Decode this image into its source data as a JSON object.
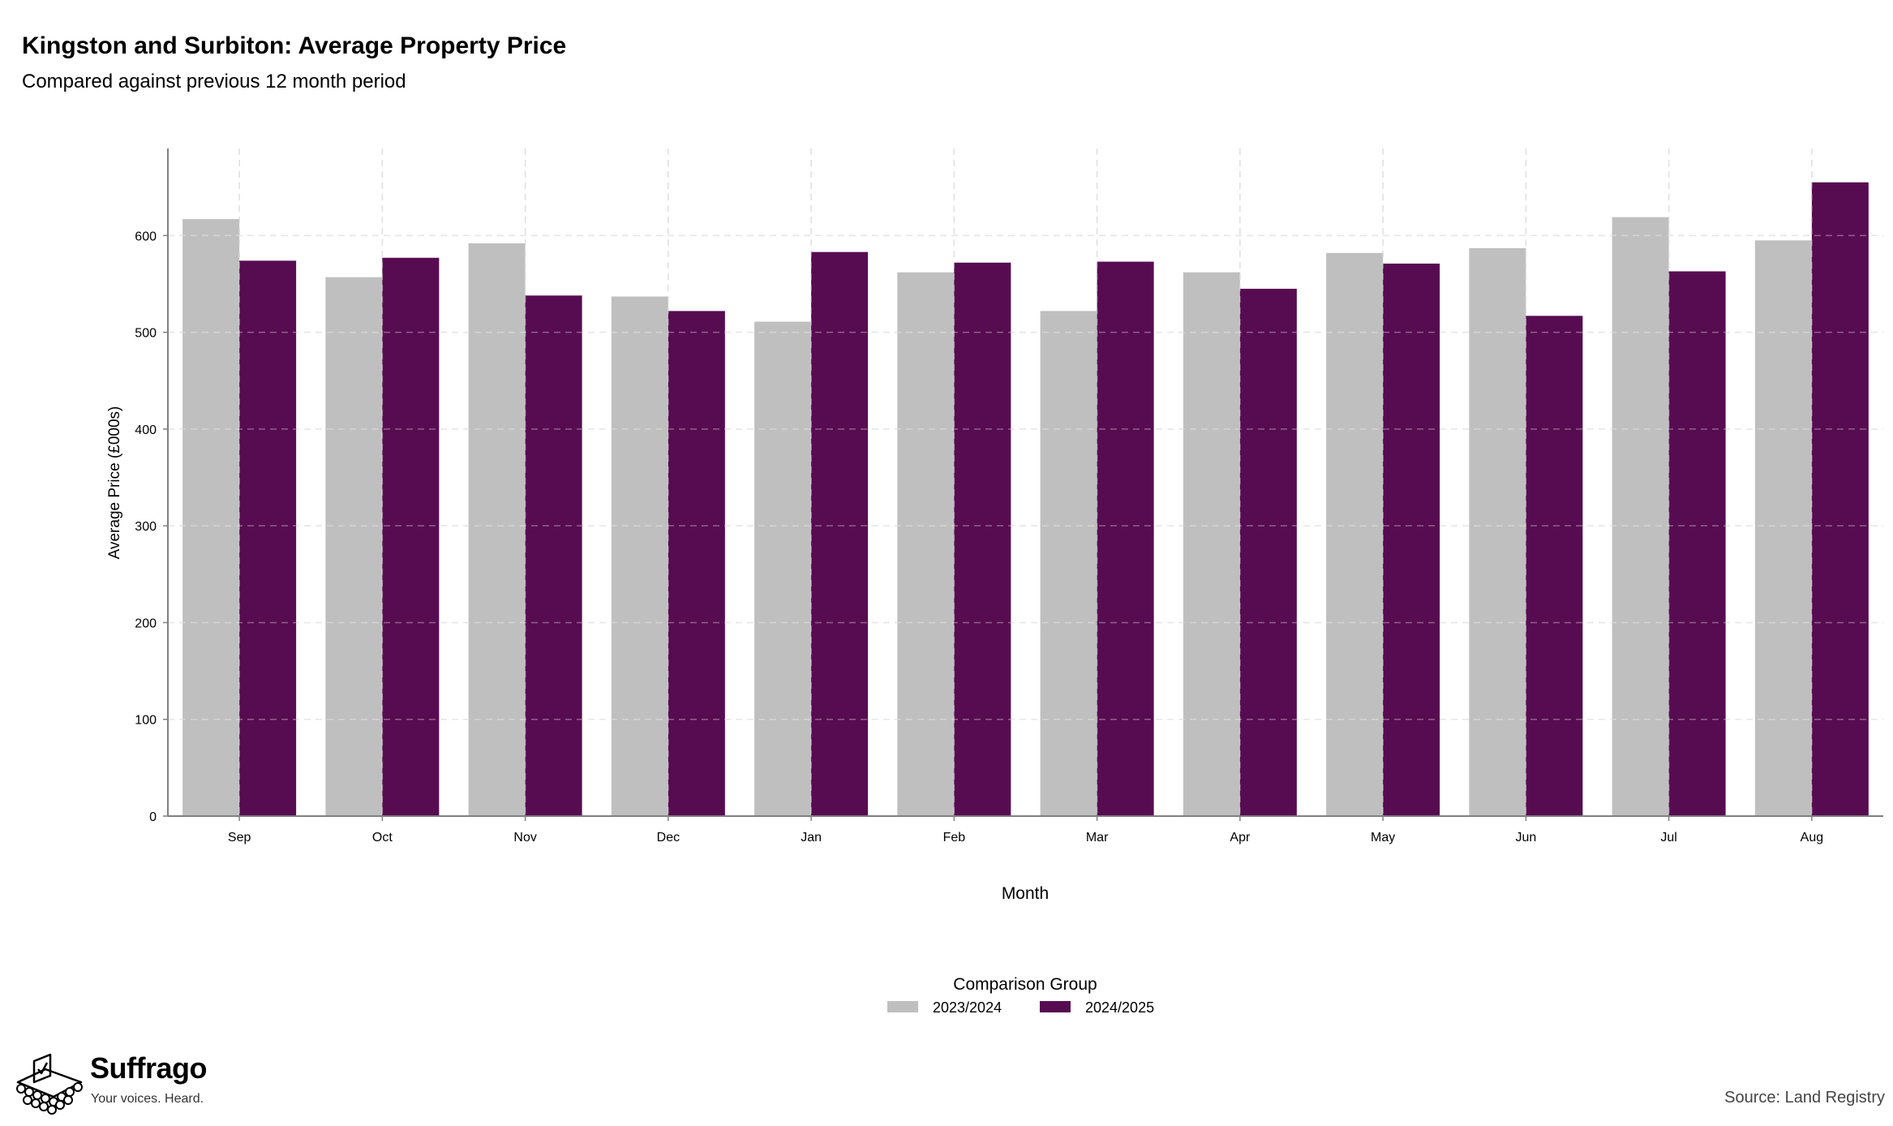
{
  "title": "Kingston and Surbiton: Average Property Price",
  "subtitle": "Compared against previous 12 month period",
  "chart_data": {
    "type": "bar",
    "categories": [
      "Sep",
      "Oct",
      "Nov",
      "Dec",
      "Jan",
      "Feb",
      "Mar",
      "Apr",
      "May",
      "Jun",
      "Jul",
      "Aug"
    ],
    "series": [
      {
        "name": "2023/2024",
        "color": "#bfbfbf",
        "values": [
          617,
          557,
          592,
          537,
          511,
          562,
          522,
          562,
          582,
          587,
          619,
          595
        ]
      },
      {
        "name": "2024/2025",
        "color": "#570c51",
        "values": [
          574,
          577,
          538,
          522,
          583,
          572,
          573,
          545,
          571,
          517,
          563,
          655
        ]
      }
    ],
    "xlabel": "Month",
    "ylabel": "Average Price (£000s)",
    "ylim": [
      0,
      690
    ],
    "yticks": [
      0,
      100,
      200,
      300,
      400,
      500,
      600
    ],
    "grid": true,
    "legend": {
      "title": "Comparison Group",
      "position": "bottom"
    }
  },
  "branding": {
    "name": "Suffrago",
    "tagline": "Your voices. Heard."
  },
  "source": "Source: Land Registry"
}
